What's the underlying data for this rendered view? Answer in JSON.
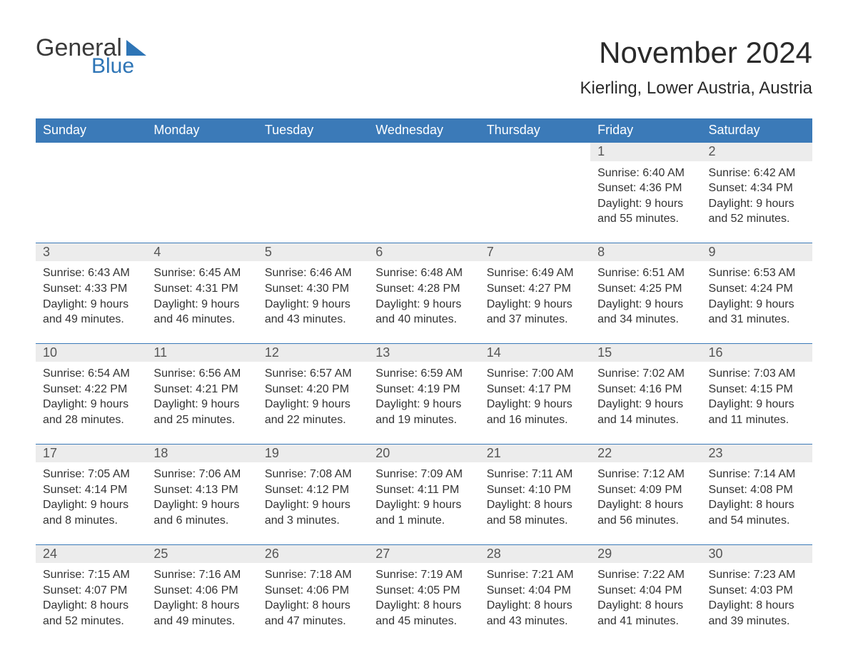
{
  "logo": {
    "word1": "General",
    "word2": "Blue"
  },
  "title": "November 2024",
  "location": "Kierling, Lower Austria, Austria",
  "colors": {
    "header_bg": "#3b7ab8",
    "header_text": "#ffffff",
    "daynum_bg": "#ececec",
    "row_border": "#3b7ab8",
    "text": "#333333",
    "logo_gray": "#3a3a3a",
    "logo_blue": "#2e75b6"
  },
  "dayHeaders": [
    "Sunday",
    "Monday",
    "Tuesday",
    "Wednesday",
    "Thursday",
    "Friday",
    "Saturday"
  ],
  "weeks": [
    [
      null,
      null,
      null,
      null,
      null,
      {
        "n": "1",
        "sunrise": "6:40 AM",
        "sunset": "4:36 PM",
        "daylight": "9 hours and 55 minutes."
      },
      {
        "n": "2",
        "sunrise": "6:42 AM",
        "sunset": "4:34 PM",
        "daylight": "9 hours and 52 minutes."
      }
    ],
    [
      {
        "n": "3",
        "sunrise": "6:43 AM",
        "sunset": "4:33 PM",
        "daylight": "9 hours and 49 minutes."
      },
      {
        "n": "4",
        "sunrise": "6:45 AM",
        "sunset": "4:31 PM",
        "daylight": "9 hours and 46 minutes."
      },
      {
        "n": "5",
        "sunrise": "6:46 AM",
        "sunset": "4:30 PM",
        "daylight": "9 hours and 43 minutes."
      },
      {
        "n": "6",
        "sunrise": "6:48 AM",
        "sunset": "4:28 PM",
        "daylight": "9 hours and 40 minutes."
      },
      {
        "n": "7",
        "sunrise": "6:49 AM",
        "sunset": "4:27 PM",
        "daylight": "9 hours and 37 minutes."
      },
      {
        "n": "8",
        "sunrise": "6:51 AM",
        "sunset": "4:25 PM",
        "daylight": "9 hours and 34 minutes."
      },
      {
        "n": "9",
        "sunrise": "6:53 AM",
        "sunset": "4:24 PM",
        "daylight": "9 hours and 31 minutes."
      }
    ],
    [
      {
        "n": "10",
        "sunrise": "6:54 AM",
        "sunset": "4:22 PM",
        "daylight": "9 hours and 28 minutes."
      },
      {
        "n": "11",
        "sunrise": "6:56 AM",
        "sunset": "4:21 PM",
        "daylight": "9 hours and 25 minutes."
      },
      {
        "n": "12",
        "sunrise": "6:57 AM",
        "sunset": "4:20 PM",
        "daylight": "9 hours and 22 minutes."
      },
      {
        "n": "13",
        "sunrise": "6:59 AM",
        "sunset": "4:19 PM",
        "daylight": "9 hours and 19 minutes."
      },
      {
        "n": "14",
        "sunrise": "7:00 AM",
        "sunset": "4:17 PM",
        "daylight": "9 hours and 16 minutes."
      },
      {
        "n": "15",
        "sunrise": "7:02 AM",
        "sunset": "4:16 PM",
        "daylight": "9 hours and 14 minutes."
      },
      {
        "n": "16",
        "sunrise": "7:03 AM",
        "sunset": "4:15 PM",
        "daylight": "9 hours and 11 minutes."
      }
    ],
    [
      {
        "n": "17",
        "sunrise": "7:05 AM",
        "sunset": "4:14 PM",
        "daylight": "9 hours and 8 minutes."
      },
      {
        "n": "18",
        "sunrise": "7:06 AM",
        "sunset": "4:13 PM",
        "daylight": "9 hours and 6 minutes."
      },
      {
        "n": "19",
        "sunrise": "7:08 AM",
        "sunset": "4:12 PM",
        "daylight": "9 hours and 3 minutes."
      },
      {
        "n": "20",
        "sunrise": "7:09 AM",
        "sunset": "4:11 PM",
        "daylight": "9 hours and 1 minute."
      },
      {
        "n": "21",
        "sunrise": "7:11 AM",
        "sunset": "4:10 PM",
        "daylight": "8 hours and 58 minutes."
      },
      {
        "n": "22",
        "sunrise": "7:12 AM",
        "sunset": "4:09 PM",
        "daylight": "8 hours and 56 minutes."
      },
      {
        "n": "23",
        "sunrise": "7:14 AM",
        "sunset": "4:08 PM",
        "daylight": "8 hours and 54 minutes."
      }
    ],
    [
      {
        "n": "24",
        "sunrise": "7:15 AM",
        "sunset": "4:07 PM",
        "daylight": "8 hours and 52 minutes."
      },
      {
        "n": "25",
        "sunrise": "7:16 AM",
        "sunset": "4:06 PM",
        "daylight": "8 hours and 49 minutes."
      },
      {
        "n": "26",
        "sunrise": "7:18 AM",
        "sunset": "4:06 PM",
        "daylight": "8 hours and 47 minutes."
      },
      {
        "n": "27",
        "sunrise": "7:19 AM",
        "sunset": "4:05 PM",
        "daylight": "8 hours and 45 minutes."
      },
      {
        "n": "28",
        "sunrise": "7:21 AM",
        "sunset": "4:04 PM",
        "daylight": "8 hours and 43 minutes."
      },
      {
        "n": "29",
        "sunrise": "7:22 AM",
        "sunset": "4:04 PM",
        "daylight": "8 hours and 41 minutes."
      },
      {
        "n": "30",
        "sunrise": "7:23 AM",
        "sunset": "4:03 PM",
        "daylight": "8 hours and 39 minutes."
      }
    ]
  ],
  "labels": {
    "sunrise": "Sunrise:",
    "sunset": "Sunset:",
    "daylight": "Daylight:"
  }
}
